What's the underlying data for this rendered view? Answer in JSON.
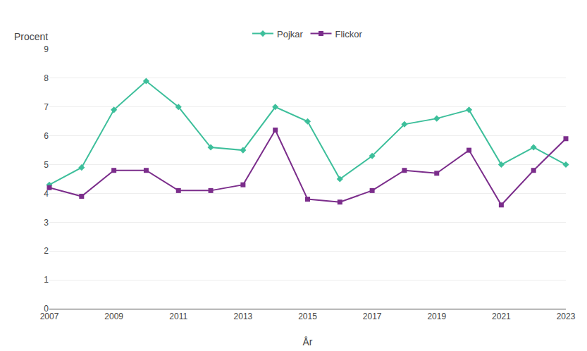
{
  "chart_data": {
    "type": "line",
    "x": [
      2007,
      2008,
      2009,
      2010,
      2011,
      2012,
      2013,
      2014,
      2015,
      2016,
      2017,
      2018,
      2019,
      2020,
      2021,
      2022,
      2023
    ],
    "series": [
      {
        "name": "Pojkar",
        "color": "#3dbf9b",
        "marker": "diamond",
        "values": [
          4.3,
          4.9,
          6.9,
          7.9,
          7.0,
          5.6,
          5.5,
          7.0,
          6.5,
          4.5,
          5.3,
          6.4,
          6.6,
          6.9,
          5.0,
          5.6,
          5.0
        ]
      },
      {
        "name": "Flickor",
        "color": "#7b2d8b",
        "marker": "square",
        "values": [
          4.2,
          3.9,
          4.8,
          4.8,
          4.1,
          4.1,
          4.3,
          6.2,
          3.8,
          3.7,
          4.1,
          4.8,
          4.7,
          5.5,
          3.6,
          4.8,
          5.9
        ]
      }
    ],
    "xlabel": "År",
    "ylabel": "Procent",
    "xlim": [
      2007,
      2023
    ],
    "xticks": [
      2007,
      2009,
      2011,
      2013,
      2015,
      2017,
      2019,
      2021,
      2023
    ],
    "ylim": [
      0,
      9
    ],
    "yticks": [
      0,
      1,
      2,
      3,
      4,
      5,
      6,
      7,
      8,
      9
    ],
    "grid": true,
    "legend": "top"
  }
}
